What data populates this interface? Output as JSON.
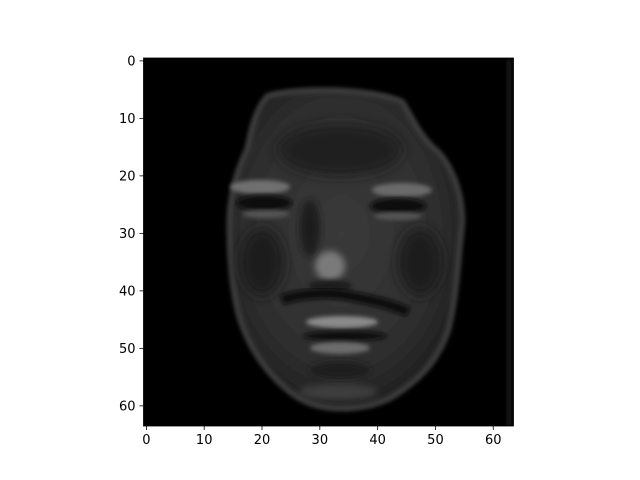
{
  "chart_data": {
    "type": "heatmap",
    "colormap": "gray",
    "grid": false,
    "xlim": [
      -0.5,
      63.5
    ],
    "ylim": [
      63.5,
      -0.5
    ],
    "x_ticks": [
      0,
      10,
      20,
      30,
      40,
      50,
      60
    ],
    "x_tick_labels": [
      "0",
      "10",
      "20",
      "30",
      "40",
      "50",
      "60"
    ],
    "y_ticks": [
      0,
      10,
      20,
      30,
      40,
      50,
      60
    ],
    "y_tick_labels": [
      "0",
      "10",
      "20",
      "30",
      "40",
      "50",
      "60"
    ],
    "image_shape": [
      64,
      64
    ]
  }
}
